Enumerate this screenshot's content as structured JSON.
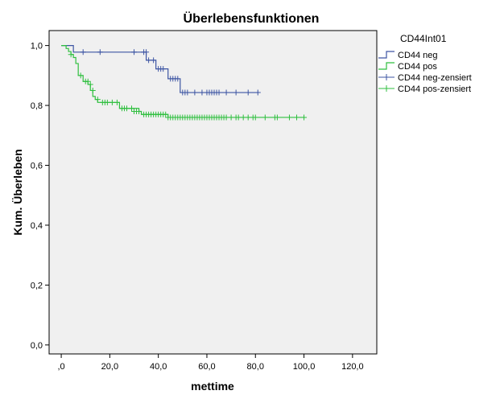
{
  "chart_data": {
    "type": "line",
    "subtype": "kaplan-meier",
    "title": "Überlebensfunktionen",
    "xlabel": "mettime",
    "ylabel": "Kum. Überleben",
    "xlim": [
      -5,
      130
    ],
    "ylim": [
      -0.03,
      1.05
    ],
    "x_ticks": [
      0,
      20,
      40,
      60,
      80,
      100,
      120
    ],
    "x_tick_labels": [
      ",0",
      "20,0",
      "40,0",
      "60,0",
      "80,0",
      "100,0",
      "120,0"
    ],
    "y_ticks": [
      0,
      0.2,
      0.4,
      0.6,
      0.8,
      1.0
    ],
    "y_tick_labels": [
      "0,0",
      "0,2",
      "0,4",
      "0,6",
      "0,8",
      "1,0"
    ],
    "grid": false,
    "background": "#f0f0f0",
    "legend": {
      "title": "CD44Int01",
      "placement": "right",
      "entries": [
        "CD44 neg",
        "CD44 pos",
        "CD44 neg-zensiert",
        "CD44 pos-zensiert"
      ]
    },
    "series": [
      {
        "name": "CD44 neg",
        "color": "#3d55a3",
        "steps": [
          [
            0,
            1.0
          ],
          [
            5,
            0.978
          ],
          [
            35,
            0.951
          ],
          [
            39,
            0.922
          ],
          [
            44,
            0.889
          ],
          [
            49,
            0.843
          ],
          [
            81,
            0.843
          ]
        ],
        "censored": [
          [
            9,
            0.978
          ],
          [
            16,
            0.978
          ],
          [
            30,
            0.978
          ],
          [
            34,
            0.978
          ],
          [
            35,
            0.978
          ],
          [
            36,
            0.951
          ],
          [
            38,
            0.951
          ],
          [
            40,
            0.922
          ],
          [
            41,
            0.922
          ],
          [
            42,
            0.922
          ],
          [
            45,
            0.889
          ],
          [
            46,
            0.889
          ],
          [
            47,
            0.889
          ],
          [
            48,
            0.889
          ],
          [
            50,
            0.843
          ],
          [
            51,
            0.843
          ],
          [
            52,
            0.843
          ],
          [
            55,
            0.843
          ],
          [
            58,
            0.843
          ],
          [
            60,
            0.843
          ],
          [
            61,
            0.843
          ],
          [
            62,
            0.843
          ],
          [
            63,
            0.843
          ],
          [
            64,
            0.843
          ],
          [
            65,
            0.843
          ],
          [
            68,
            0.843
          ],
          [
            72,
            0.843
          ],
          [
            77,
            0.843
          ],
          [
            81,
            0.843
          ]
        ]
      },
      {
        "name": "CD44 pos",
        "color": "#2fbf3f",
        "steps": [
          [
            0,
            1.0
          ],
          [
            2,
            0.99
          ],
          [
            3,
            0.98
          ],
          [
            4,
            0.97
          ],
          [
            5,
            0.96
          ],
          [
            6,
            0.94
          ],
          [
            7,
            0.9
          ],
          [
            9,
            0.88
          ],
          [
            11,
            0.87
          ],
          [
            12,
            0.85
          ],
          [
            13,
            0.83
          ],
          [
            14,
            0.82
          ],
          [
            15,
            0.81
          ],
          [
            24,
            0.79
          ],
          [
            32,
            0.78
          ],
          [
            33,
            0.77
          ],
          [
            44,
            0.76
          ],
          [
            100,
            0.76
          ]
        ],
        "censored": [
          [
            4,
            0.97
          ],
          [
            8,
            0.9
          ],
          [
            10,
            0.88
          ],
          [
            11,
            0.88
          ],
          [
            12,
            0.87
          ],
          [
            13,
            0.85
          ],
          [
            15,
            0.82
          ],
          [
            17,
            0.81
          ],
          [
            18,
            0.81
          ],
          [
            19,
            0.81
          ],
          [
            21,
            0.81
          ],
          [
            23,
            0.81
          ],
          [
            25,
            0.79
          ],
          [
            26,
            0.79
          ],
          [
            27,
            0.79
          ],
          [
            29,
            0.79
          ],
          [
            30,
            0.78
          ],
          [
            31,
            0.78
          ],
          [
            32,
            0.78
          ],
          [
            34,
            0.77
          ],
          [
            35,
            0.77
          ],
          [
            36,
            0.77
          ],
          [
            37,
            0.77
          ],
          [
            38,
            0.77
          ],
          [
            39,
            0.77
          ],
          [
            40,
            0.77
          ],
          [
            41,
            0.77
          ],
          [
            42,
            0.77
          ],
          [
            43,
            0.77
          ],
          [
            44,
            0.76
          ],
          [
            45,
            0.76
          ],
          [
            46,
            0.76
          ],
          [
            47,
            0.76
          ],
          [
            48,
            0.76
          ],
          [
            49,
            0.76
          ],
          [
            50,
            0.76
          ],
          [
            51,
            0.76
          ],
          [
            52,
            0.76
          ],
          [
            53,
            0.76
          ],
          [
            54,
            0.76
          ],
          [
            55,
            0.76
          ],
          [
            56,
            0.76
          ],
          [
            57,
            0.76
          ],
          [
            58,
            0.76
          ],
          [
            59,
            0.76
          ],
          [
            60,
            0.76
          ],
          [
            61,
            0.76
          ],
          [
            62,
            0.76
          ],
          [
            63,
            0.76
          ],
          [
            64,
            0.76
          ],
          [
            65,
            0.76
          ],
          [
            66,
            0.76
          ],
          [
            67,
            0.76
          ],
          [
            68,
            0.76
          ],
          [
            70,
            0.76
          ],
          [
            72,
            0.76
          ],
          [
            73,
            0.76
          ],
          [
            75,
            0.76
          ],
          [
            77,
            0.76
          ],
          [
            79,
            0.76
          ],
          [
            80,
            0.76
          ],
          [
            84,
            0.76
          ],
          [
            88,
            0.76
          ],
          [
            89,
            0.76
          ],
          [
            94,
            0.76
          ],
          [
            97,
            0.76
          ],
          [
            100,
            0.76
          ]
        ]
      }
    ]
  }
}
